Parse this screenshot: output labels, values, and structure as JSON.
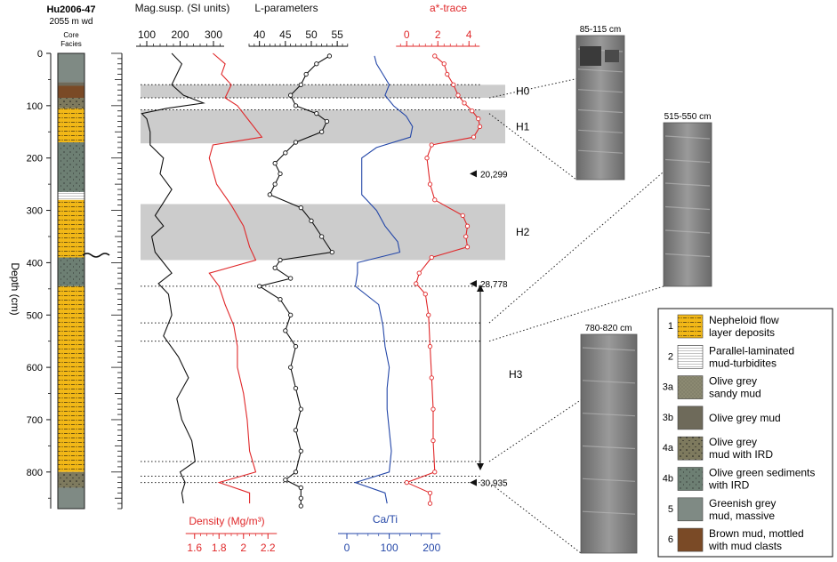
{
  "core": {
    "name": "Hu2006-47",
    "water_depth": "2055 m wd",
    "column_label_1": "Core",
    "column_label_2": "Facies"
  },
  "depth_axis": {
    "label": "Depth (cm)",
    "ticks": [
      0,
      100,
      200,
      300,
      400,
      500,
      600,
      700,
      800
    ],
    "range": [
      0,
      870
    ]
  },
  "core_log": [
    {
      "from": 0,
      "to": 55,
      "facies": "5"
    },
    {
      "from": 55,
      "to": 62,
      "facies": "3b"
    },
    {
      "from": 62,
      "to": 85,
      "facies": "6"
    },
    {
      "from": 85,
      "to": 105,
      "facies": "4a"
    },
    {
      "from": 105,
      "to": 170,
      "facies": "1"
    },
    {
      "from": 170,
      "to": 265,
      "facies": "4b"
    },
    {
      "from": 265,
      "to": 280,
      "facies": "2"
    },
    {
      "from": 280,
      "to": 390,
      "facies": "1"
    },
    {
      "from": 390,
      "to": 445,
      "facies": "4b"
    },
    {
      "from": 445,
      "to": 800,
      "facies": "1"
    },
    {
      "from": 800,
      "to": 830,
      "facies": "4a"
    },
    {
      "from": 830,
      "to": 870,
      "facies": "5"
    }
  ],
  "axes": {
    "mag": {
      "label": "Mag.susp. (SI units)",
      "ticks": [
        100,
        200,
        300
      ],
      "range": [
        60,
        380
      ],
      "color": "#111111"
    },
    "density": {
      "label": "Density (Mg/m³)",
      "ticks": [
        1.6,
        1.8,
        2,
        2.2
      ],
      "range": [
        1.5,
        2.3
      ],
      "color": "#e0282a"
    },
    "lpar": {
      "label": "L-parameters",
      "ticks": [
        40,
        45,
        50,
        55
      ],
      "range": [
        38,
        56
      ],
      "color": "#111111"
    },
    "cati": {
      "label": "Ca/Ti",
      "ticks": [
        0,
        100,
        200
      ],
      "range": [
        0,
        210
      ],
      "color": "#2447a8"
    },
    "astar": {
      "label": "a*-trace",
      "ticks": [
        0,
        2,
        4
      ],
      "range": [
        -0.7,
        5.3
      ],
      "color": "#e0282a"
    }
  },
  "events": [
    {
      "label": "H0",
      "top": 60,
      "bottom": 85
    },
    {
      "label": "H1",
      "top": 108,
      "bottom": 172
    },
    {
      "label": "H2",
      "top": 288,
      "bottom": 395
    },
    {
      "label": "H3",
      "top": 445,
      "bottom": 815
    }
  ],
  "ages": [
    {
      "depth": 230,
      "label": "20,299"
    },
    {
      "depth": 440,
      "label": "28,778"
    },
    {
      "depth": 820,
      "label": "30,935"
    }
  ],
  "photos": [
    {
      "label": "85-115 cm",
      "from": 85,
      "to": 115
    },
    {
      "label": "515-550 cm",
      "from": 515,
      "to": 550
    },
    {
      "label": "780-820 cm",
      "from": 780,
      "to": 820
    }
  ],
  "legend": [
    {
      "num": "1",
      "line1": "Nepheloid flow",
      "line2": "layer deposits",
      "color": "#f2b817"
    },
    {
      "num": "2",
      "line1": "Parallel-laminated",
      "line2": "mud-turbidites",
      "color": "#ffffff"
    },
    {
      "num": "3a",
      "line1": "Olive grey",
      "line2": "sandy mud",
      "color": "#8c8a72"
    },
    {
      "num": "3b",
      "line1": "Olive grey mud",
      "line2": "",
      "color": "#6e6a5a"
    },
    {
      "num": "4a",
      "line1": "Olive grey",
      "line2": "mud with IRD",
      "color": "#7e7a5e"
    },
    {
      "num": "4b",
      "line1": "Olive green sediments",
      "line2": "with IRD",
      "color": "#6d7f73"
    },
    {
      "num": "5",
      "line1": "Greenish grey",
      "line2": "mud, massive",
      "color": "#7f8a84"
    },
    {
      "num": "6",
      "line1": "Brown mud, mottled",
      "line2": "with mud clasts",
      "color": "#7a4a26"
    }
  ],
  "series": {
    "mag": [
      [
        0,
        175
      ],
      [
        20,
        205
      ],
      [
        40,
        190
      ],
      [
        60,
        175
      ],
      [
        80,
        210
      ],
      [
        95,
        270
      ],
      [
        105,
        160
      ],
      [
        115,
        85
      ],
      [
        125,
        100
      ],
      [
        150,
        110
      ],
      [
        175,
        110
      ],
      [
        200,
        150
      ],
      [
        230,
        140
      ],
      [
        260,
        175
      ],
      [
        290,
        145
      ],
      [
        310,
        125
      ],
      [
        330,
        150
      ],
      [
        350,
        115
      ],
      [
        380,
        125
      ],
      [
        400,
        150
      ],
      [
        420,
        175
      ],
      [
        440,
        135
      ],
      [
        460,
        165
      ],
      [
        500,
        175
      ],
      [
        540,
        150
      ],
      [
        580,
        195
      ],
      [
        620,
        225
      ],
      [
        660,
        190
      ],
      [
        700,
        205
      ],
      [
        740,
        235
      ],
      [
        780,
        245
      ],
      [
        800,
        200
      ],
      [
        820,
        215
      ],
      [
        840,
        205
      ],
      [
        860,
        210
      ]
    ],
    "density": [
      [
        0,
        1.75
      ],
      [
        20,
        1.85
      ],
      [
        40,
        1.82
      ],
      [
        60,
        1.9
      ],
      [
        85,
        1.85
      ],
      [
        100,
        1.95
      ],
      [
        130,
        2.05
      ],
      [
        160,
        2.15
      ],
      [
        175,
        1.75
      ],
      [
        200,
        1.72
      ],
      [
        250,
        1.78
      ],
      [
        290,
        1.9
      ],
      [
        330,
        2.0
      ],
      [
        370,
        2.05
      ],
      [
        395,
        2.1
      ],
      [
        420,
        1.72
      ],
      [
        445,
        1.8
      ],
      [
        480,
        1.85
      ],
      [
        520,
        1.92
      ],
      [
        560,
        1.95
      ],
      [
        600,
        1.95
      ],
      [
        650,
        2.0
      ],
      [
        700,
        2.03
      ],
      [
        760,
        2.05
      ],
      [
        800,
        2.1
      ],
      [
        820,
        1.8
      ],
      [
        840,
        2.05
      ],
      [
        860,
        2.05
      ]
    ],
    "lpar": [
      [
        5,
        53.5
      ],
      [
        20,
        51
      ],
      [
        40,
        49
      ],
      [
        60,
        48
      ],
      [
        80,
        46
      ],
      [
        100,
        47
      ],
      [
        115,
        51
      ],
      [
        130,
        53
      ],
      [
        150,
        52
      ],
      [
        170,
        47
      ],
      [
        190,
        45
      ],
      [
        210,
        43
      ],
      [
        230,
        44
      ],
      [
        250,
        43
      ],
      [
        270,
        42
      ],
      [
        295,
        48
      ],
      [
        320,
        50
      ],
      [
        350,
        52
      ],
      [
        380,
        54
      ],
      [
        395,
        44
      ],
      [
        410,
        43
      ],
      [
        430,
        46
      ],
      [
        445,
        40
      ],
      [
        470,
        44
      ],
      [
        500,
        46
      ],
      [
        530,
        45
      ],
      [
        560,
        47
      ],
      [
        600,
        46
      ],
      [
        640,
        47
      ],
      [
        680,
        48
      ],
      [
        720,
        47
      ],
      [
        760,
        48
      ],
      [
        800,
        47
      ],
      [
        815,
        45
      ],
      [
        830,
        48
      ],
      [
        850,
        48
      ],
      [
        865,
        48
      ]
    ],
    "cati": [
      [
        5,
        65
      ],
      [
        20,
        70
      ],
      [
        40,
        85
      ],
      [
        60,
        100
      ],
      [
        80,
        90
      ],
      [
        100,
        110
      ],
      [
        120,
        140
      ],
      [
        140,
        155
      ],
      [
        160,
        150
      ],
      [
        180,
        70
      ],
      [
        200,
        35
      ],
      [
        230,
        35
      ],
      [
        270,
        35
      ],
      [
        300,
        70
      ],
      [
        330,
        90
      ],
      [
        360,
        120
      ],
      [
        380,
        125
      ],
      [
        400,
        25
      ],
      [
        420,
        25
      ],
      [
        445,
        20
      ],
      [
        480,
        75
      ],
      [
        520,
        85
      ],
      [
        560,
        90
      ],
      [
        600,
        100
      ],
      [
        640,
        95
      ],
      [
        680,
        95
      ],
      [
        720,
        100
      ],
      [
        760,
        105
      ],
      [
        800,
        100
      ],
      [
        820,
        20
      ],
      [
        840,
        90
      ],
      [
        860,
        95
      ]
    ],
    "astar": [
      [
        5,
        1.8
      ],
      [
        20,
        2.4
      ],
      [
        40,
        2.6
      ],
      [
        60,
        3.0
      ],
      [
        80,
        3.3
      ],
      [
        95,
        3.7
      ],
      [
        110,
        4.2
      ],
      [
        125,
        4.6
      ],
      [
        140,
        4.7
      ],
      [
        160,
        4.3
      ],
      [
        175,
        1.6
      ],
      [
        200,
        1.3
      ],
      [
        250,
        1.5
      ],
      [
        280,
        1.8
      ],
      [
        310,
        3.6
      ],
      [
        330,
        3.9
      ],
      [
        350,
        3.8
      ],
      [
        370,
        3.9
      ],
      [
        390,
        1.6
      ],
      [
        420,
        0.8
      ],
      [
        440,
        0.6
      ],
      [
        460,
        1.2
      ],
      [
        500,
        1.4
      ],
      [
        560,
        1.5
      ],
      [
        620,
        1.6
      ],
      [
        680,
        1.7
      ],
      [
        740,
        1.7
      ],
      [
        800,
        1.8
      ],
      [
        820,
        0.0
      ],
      [
        840,
        1.5
      ],
      [
        860,
        1.5
      ]
    ]
  }
}
